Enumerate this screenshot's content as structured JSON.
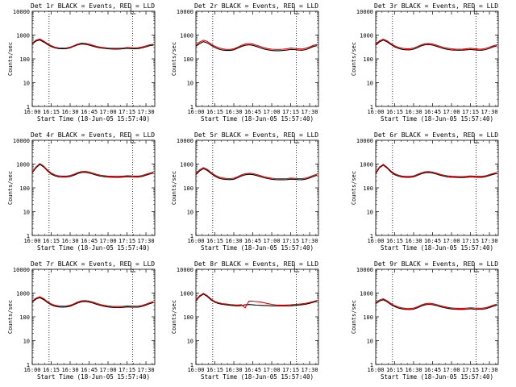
{
  "chart_data": {
    "type": "line",
    "title_suffix": " BLACK = Events, RED = LLD",
    "xlabel": "Start Time (18-Jun-05 15:57:40)",
    "ylabel": "Counts/sec",
    "x_ticks": [
      "16:00",
      "16:15",
      "16:30",
      "16:45",
      "17:00",
      "17:15",
      "17:30"
    ],
    "x_tick_minutes": [
      0,
      15,
      30,
      45,
      60,
      75,
      90
    ],
    "x_range_minutes": [
      0,
      97
    ],
    "y_ticks": [
      "1",
      "10",
      "100",
      "1000",
      "10000"
    ],
    "ylim": [
      1,
      10000
    ],
    "y_scale": "log",
    "dotted_time_markers_minutes": [
      13.3,
      79.5
    ],
    "series_colors": {
      "events": "#000000",
      "lld": "#e00000"
    },
    "series_names": [
      "Events",
      "LLD"
    ],
    "x": [
      0,
      3,
      6,
      9,
      12,
      15,
      18,
      21,
      24,
      27,
      30,
      33,
      36,
      39,
      42,
      45,
      48,
      51,
      54,
      57,
      60,
      63,
      66,
      69,
      72,
      75,
      78,
      81,
      84,
      87,
      90,
      93,
      96
    ],
    "panels": [
      {
        "title": "Det 1r",
        "events": [
          420,
          560,
          620,
          510,
          400,
          330,
          290,
          270,
          265,
          270,
          290,
          340,
          390,
          420,
          410,
          380,
          340,
          310,
          290,
          275,
          265,
          260,
          258,
          260,
          265,
          275,
          270,
          265,
          270,
          290,
          320,
          360,
          380
        ],
        "lld": [
          460,
          610,
          680,
          560,
          440,
          360,
          310,
          290,
          285,
          290,
          310,
          360,
          420,
          460,
          450,
          420,
          370,
          335,
          310,
          295,
          285,
          280,
          278,
          280,
          285,
          300,
          295,
          290,
          295,
          315,
          350,
          390,
          410
        ]
      },
      {
        "title": "Det 2r",
        "events": [
          340,
          440,
          530,
          470,
          370,
          300,
          260,
          235,
          225,
          225,
          240,
          280,
          330,
          370,
          390,
          370,
          330,
          290,
          260,
          240,
          225,
          220,
          220,
          225,
          235,
          250,
          245,
          235,
          230,
          245,
          280,
          330,
          360
        ],
        "lld": [
          390,
          510,
          610,
          540,
          420,
          340,
          295,
          265,
          250,
          250,
          265,
          310,
          370,
          420,
          440,
          420,
          375,
          330,
          295,
          270,
          255,
          250,
          250,
          255,
          265,
          285,
          275,
          265,
          260,
          280,
          315,
          370,
          400
        ]
      },
      {
        "title": "Det 3r",
        "events": [
          380,
          520,
          610,
          520,
          400,
          320,
          275,
          250,
          240,
          240,
          255,
          295,
          350,
          390,
          400,
          380,
          340,
          300,
          270,
          250,
          238,
          232,
          230,
          232,
          240,
          250,
          240,
          232,
          230,
          245,
          275,
          320,
          350
        ],
        "lld": [
          420,
          575,
          675,
          575,
          445,
          355,
          305,
          280,
          268,
          268,
          285,
          330,
          390,
          435,
          445,
          425,
          380,
          335,
          300,
          280,
          265,
          258,
          256,
          258,
          268,
          280,
          268,
          260,
          258,
          275,
          310,
          355,
          390
        ]
      },
      {
        "title": "Det 4r",
        "events": [
          430,
          700,
          980,
          760,
          520,
          380,
          320,
          290,
          285,
          285,
          300,
          340,
          400,
          440,
          450,
          420,
          380,
          340,
          310,
          295,
          285,
          280,
          278,
          278,
          285,
          295,
          290,
          285,
          285,
          300,
          340,
          380,
          420
        ],
        "lld": [
          470,
          760,
          1060,
          830,
          570,
          420,
          350,
          320,
          312,
          312,
          330,
          375,
          440,
          485,
          495,
          465,
          420,
          375,
          340,
          325,
          312,
          308,
          305,
          305,
          312,
          325,
          320,
          312,
          312,
          330,
          375,
          420,
          460
        ]
      },
      {
        "title": "Det 5r",
        "events": [
          360,
          520,
          640,
          540,
          400,
          310,
          260,
          235,
          225,
          222,
          230,
          265,
          315,
          355,
          370,
          360,
          330,
          295,
          265,
          245,
          230,
          222,
          218,
          218,
          222,
          232,
          228,
          222,
          220,
          232,
          262,
          300,
          340
        ],
        "lld": [
          400,
          580,
          710,
          600,
          445,
          345,
          290,
          262,
          250,
          246,
          256,
          295,
          350,
          395,
          410,
          400,
          365,
          328,
          295,
          272,
          255,
          246,
          242,
          242,
          246,
          258,
          252,
          246,
          244,
          258,
          290,
          335,
          380
        ]
      },
      {
        "title": "Det 6r",
        "events": [
          400,
          700,
          900,
          680,
          470,
          360,
          310,
          285,
          275,
          275,
          290,
          335,
          390,
          430,
          440,
          420,
          380,
          340,
          310,
          290,
          280,
          275,
          272,
          272,
          278,
          290,
          282,
          278,
          278,
          295,
          330,
          370,
          400
        ],
        "lld": [
          440,
          760,
          980,
          740,
          515,
          395,
          340,
          312,
          302,
          302,
          318,
          368,
          428,
          472,
          484,
          462,
          418,
          374,
          340,
          318,
          307,
          302,
          298,
          298,
          305,
          318,
          310,
          305,
          305,
          322,
          362,
          405,
          440
        ]
      },
      {
        "title": "Det 7r",
        "events": [
          420,
          560,
          640,
          530,
          400,
          320,
          280,
          262,
          258,
          262,
          280,
          325,
          385,
          430,
          440,
          420,
          380,
          335,
          300,
          278,
          262,
          252,
          248,
          248,
          252,
          262,
          258,
          255,
          258,
          275,
          310,
          360,
          400
        ],
        "lld": [
          460,
          615,
          705,
          585,
          440,
          352,
          308,
          288,
          284,
          288,
          308,
          358,
          424,
          473,
          484,
          462,
          418,
          368,
          330,
          306,
          288,
          277,
          273,
          273,
          277,
          288,
          284,
          280,
          284,
          302,
          341,
          396,
          440
        ]
      },
      {
        "title": "Det 8r",
        "events": [
          470,
          720,
          900,
          720,
          520,
          410,
          360,
          335,
          320,
          305,
          295,
          290,
          300,
          320,
          330,
          320,
          310,
          305,
          300,
          295,
          290,
          288,
          286,
          286,
          288,
          292,
          300,
          310,
          325,
          340,
          370,
          410,
          450
        ],
        "lld": [
          510,
          780,
          980,
          780,
          565,
          445,
          390,
          363,
          347,
          330,
          320,
          315,
          325,
          240,
          460,
          455,
          440,
          420,
          390,
          360,
          335,
          318,
          312,
          312,
          315,
          320,
          330,
          340,
          355,
          370,
          400,
          445,
          490
        ]
      },
      {
        "title": "Det 9r",
        "events": [
          360,
          460,
          520,
          430,
          330,
          270,
          235,
          215,
          205,
          202,
          210,
          240,
          285,
          320,
          335,
          325,
          300,
          270,
          245,
          228,
          215,
          208,
          205,
          205,
          210,
          218,
          212,
          208,
          208,
          218,
          245,
          280,
          310
        ],
        "lld": [
          400,
          510,
          575,
          475,
          365,
          298,
          260,
          238,
          226,
          223,
          232,
          265,
          315,
          355,
          372,
          360,
          332,
          299,
          271,
          252,
          238,
          230,
          226,
          226,
          232,
          241,
          234,
          230,
          230,
          241,
          270,
          310,
          342
        ]
      }
    ]
  }
}
